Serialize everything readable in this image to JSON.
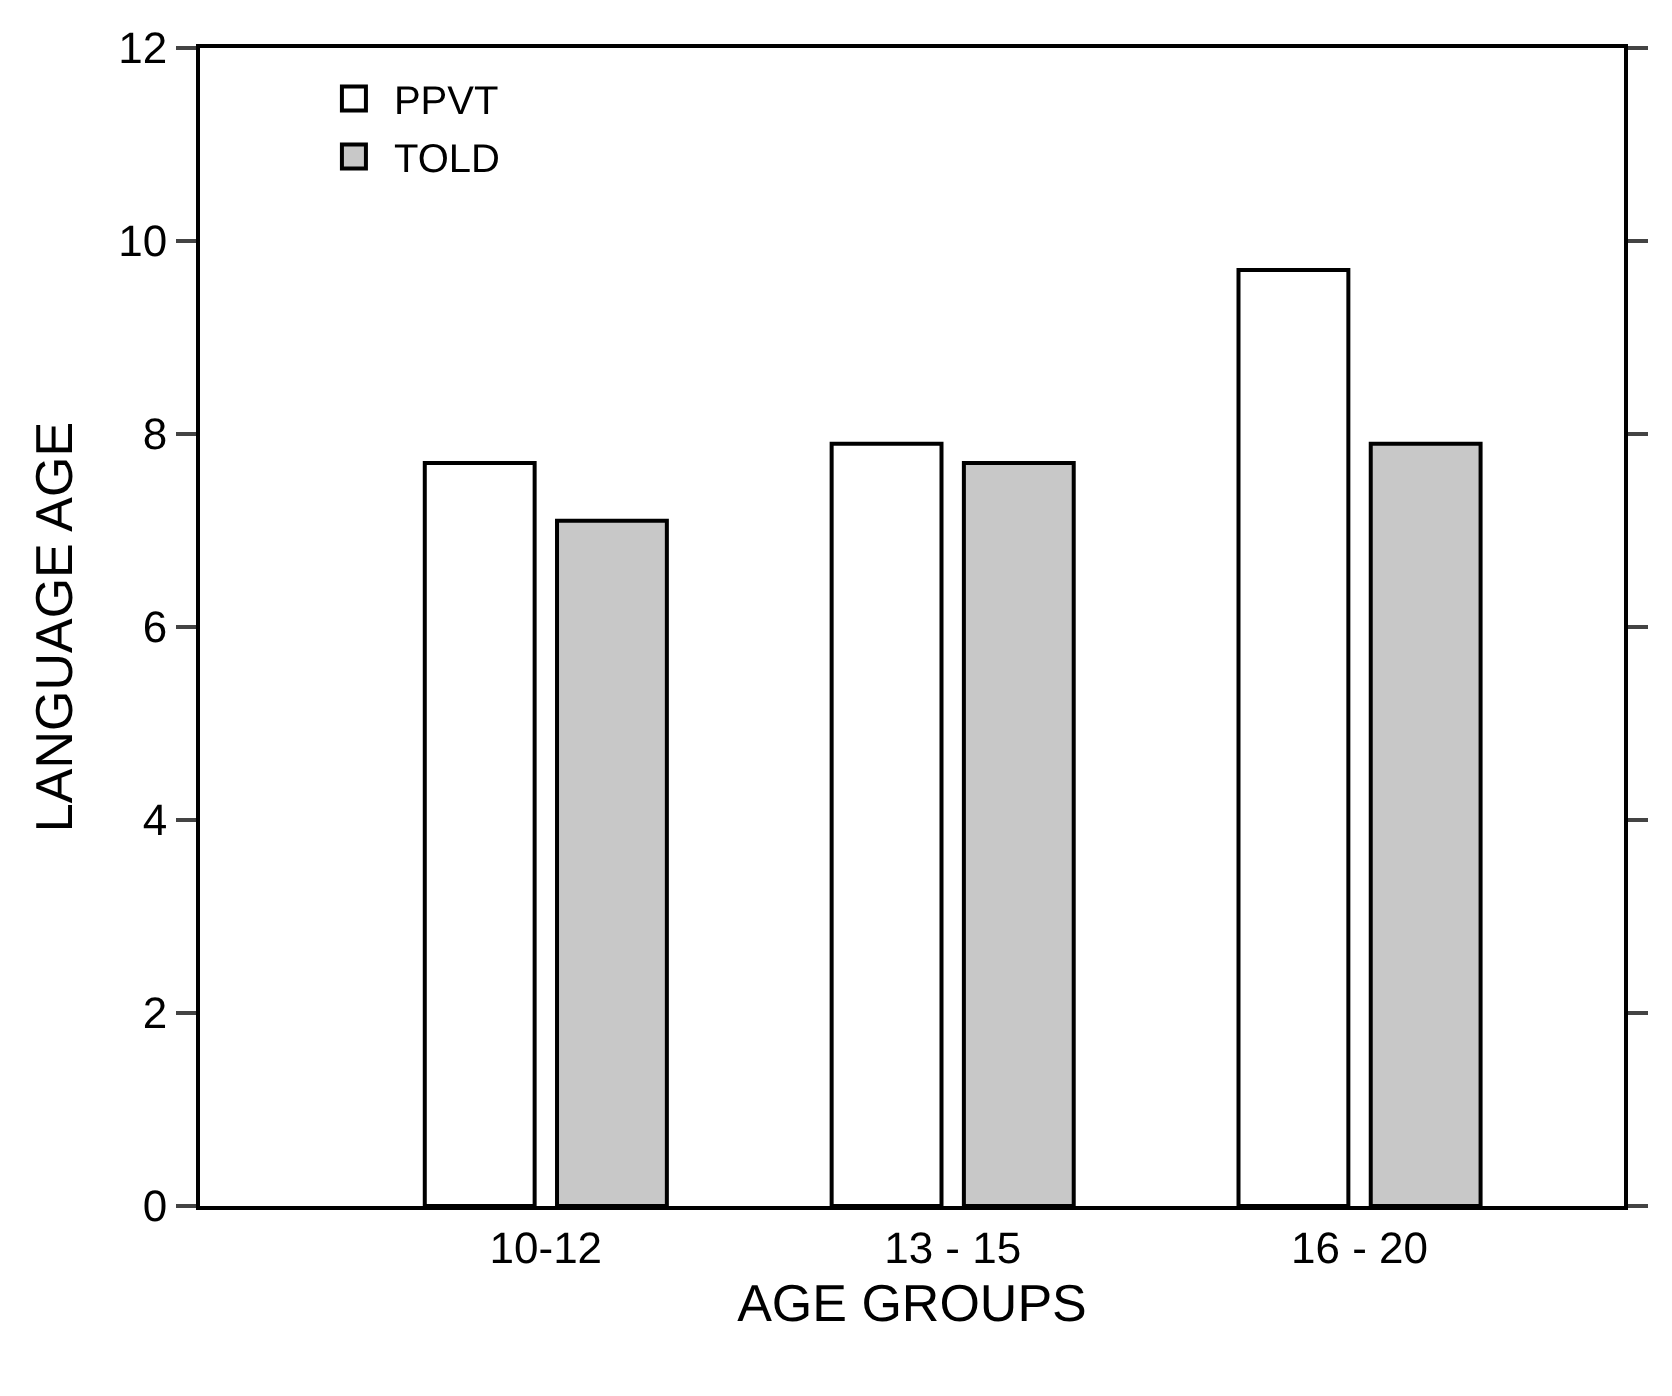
{
  "chart_data": {
    "type": "bar",
    "xlabel": "AGE GROUPS",
    "ylabel": "LANGUAGE AGE",
    "categories": [
      "10-12",
      "13 - 15",
      "16 - 20"
    ],
    "series": [
      {
        "name": "PPVT",
        "color": "#ffffff",
        "values": [
          7.7,
          7.9,
          9.7
        ]
      },
      {
        "name": "TOLD",
        "color": "#c8c8c8",
        "values": [
          7.1,
          7.7,
          7.9
        ]
      }
    ],
    "ylim": [
      0,
      12
    ],
    "yticks": [
      0,
      2,
      4,
      6,
      8,
      10,
      12
    ],
    "legend": "top left"
  }
}
